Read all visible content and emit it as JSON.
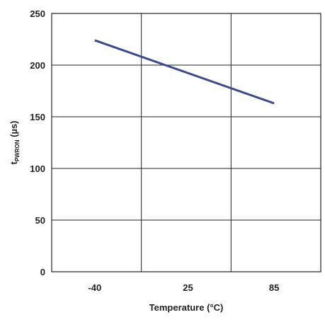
{
  "chart_data": {
    "type": "line",
    "title": "",
    "xlabel": "Temperature (°C)",
    "ylabel_prefix": "t",
    "ylabel_subscript": "PWRON",
    "ylabel_suffix": " (µs)",
    "categories": [
      "-40",
      "25",
      "85"
    ],
    "x": [
      -40,
      85
    ],
    "series": [
      {
        "values": [
          224,
          163
        ]
      }
    ],
    "ylim": [
      0,
      250
    ],
    "yticks": [
      0,
      50,
      100,
      150,
      200,
      250
    ],
    "grid": true,
    "line_color": "#3b4a8a",
    "grid_color": "#222222"
  }
}
